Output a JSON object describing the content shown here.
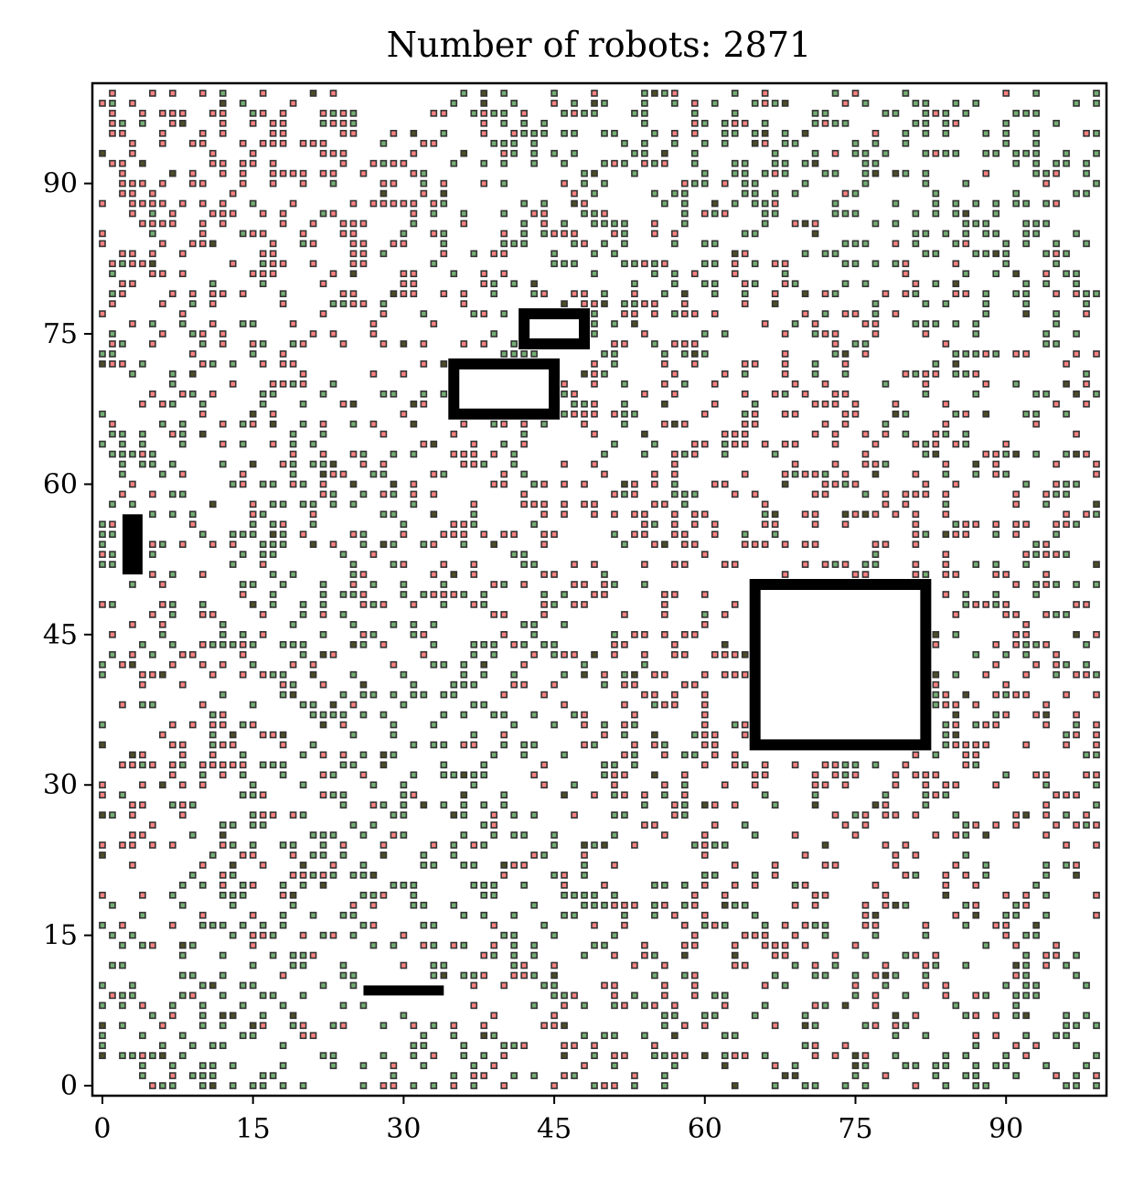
{
  "chart_data": {
    "type": "scatter",
    "title": "Number of robots: 2871",
    "xlabel": "",
    "ylabel": "",
    "xlim": [
      -1,
      100
    ],
    "ylim": [
      -1,
      100
    ],
    "xticks": [
      0,
      15,
      30,
      45,
      60,
      75,
      90
    ],
    "yticks": [
      0,
      15,
      30,
      45,
      60,
      75,
      90
    ],
    "grid": false,
    "legend": "none",
    "robot_count": 2871,
    "marker": "square",
    "colors": {
      "red_robot": "#ff6b6b",
      "green_robot": "#5aa05a",
      "overlap": "#3a3a10",
      "obstacle": "#000000",
      "marker_edge": "#333333"
    },
    "series": [
      {
        "color_key": "red_robot",
        "note_count_approx": 1435
      },
      {
        "color_key": "green_robot",
        "note_count_approx": 1436
      }
    ],
    "obstacles": [
      {
        "kind": "outline",
        "x0": 35,
        "y0": 67,
        "x1": 45,
        "y1": 72
      },
      {
        "kind": "outline",
        "x0": 42,
        "y0": 74,
        "x1": 48,
        "y1": 77
      },
      {
        "kind": "outline",
        "x0": 65,
        "y0": 34,
        "x1": 82,
        "y1": 50
      },
      {
        "kind": "filled",
        "x0": 2,
        "y0": 51,
        "x1": 4,
        "y1": 57
      },
      {
        "kind": "filled",
        "x0": 26,
        "y0": 9,
        "x1": 34,
        "y1": 10
      }
    ],
    "density_hotspots": [
      {
        "x": 18,
        "y": 88,
        "color_key": "red_robot"
      },
      {
        "x": 30,
        "y": 75,
        "color_key": "red_robot"
      },
      {
        "x": 70,
        "y": 58,
        "color_key": "red_robot"
      },
      {
        "x": 2,
        "y": 40,
        "color_key": "red_robot"
      },
      {
        "x": 55,
        "y": 45,
        "color_key": "red_robot"
      },
      {
        "x": 85,
        "y": 20,
        "color_key": "red_robot"
      },
      {
        "x": 45,
        "y": 88,
        "color_key": "green_robot"
      },
      {
        "x": 85,
        "y": 88,
        "color_key": "green_robot"
      },
      {
        "x": 10,
        "y": 55,
        "color_key": "green_robot"
      },
      {
        "x": 40,
        "y": 35,
        "color_key": "green_robot"
      },
      {
        "x": 90,
        "y": 5,
        "color_key": "green_robot"
      },
      {
        "x": 5,
        "y": 5,
        "color_key": "green_robot"
      }
    ]
  }
}
